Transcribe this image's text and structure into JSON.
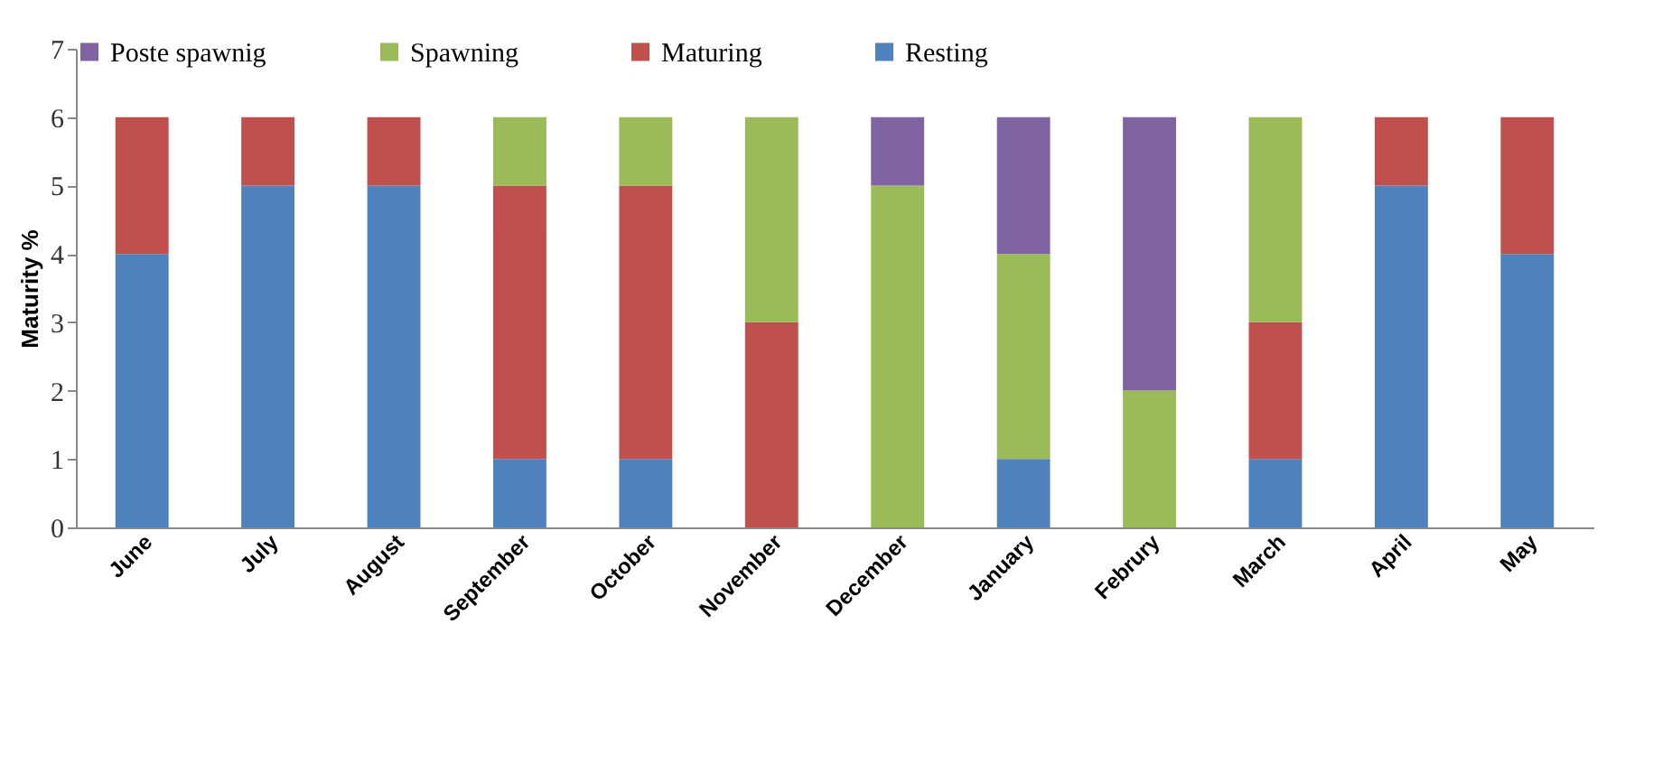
{
  "chart_data": {
    "type": "bar",
    "stacked": true,
    "ylabel": "Maturity %",
    "categories": [
      "June",
      "July",
      "August",
      "September",
      "October",
      "November",
      "December",
      "January",
      "Februry",
      "March",
      "April",
      "May"
    ],
    "series": [
      {
        "name": "Resting",
        "color": "#4f81bd",
        "values": [
          4,
          5,
          5,
          1,
          1,
          0,
          0,
          1,
          0,
          1,
          5,
          4
        ]
      },
      {
        "name": "Maturing",
        "color": "#c0504d",
        "values": [
          2,
          1,
          1,
          4,
          4,
          3,
          0,
          0,
          0,
          2,
          1,
          2
        ]
      },
      {
        "name": "Spawning",
        "color": "#9bbb59",
        "values": [
          0,
          0,
          0,
          1,
          1,
          3,
          5,
          3,
          2,
          3,
          0,
          0
        ]
      },
      {
        "name": "Poste spawnig",
        "color": "#8064a2",
        "values": [
          0,
          0,
          0,
          0,
          0,
          0,
          1,
          2,
          4,
          0,
          0,
          0
        ]
      }
    ],
    "ylim": [
      0,
      7
    ],
    "yticks": [
      0,
      1,
      2,
      3,
      4,
      5,
      6,
      7
    ],
    "grid": false,
    "legend": "top"
  }
}
